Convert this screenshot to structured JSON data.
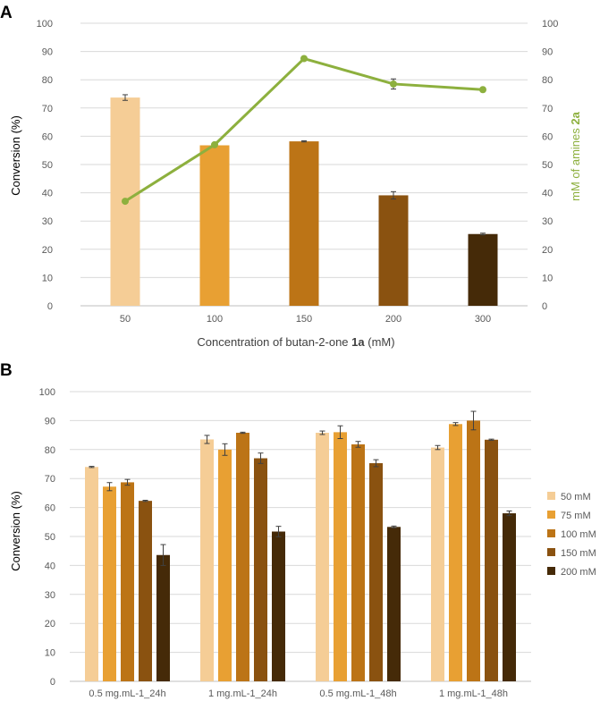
{
  "chart_data": [
    {
      "panel": "A",
      "type": "bar",
      "title": "",
      "xlabel_prefix": "Concentration of butan-2-one ",
      "xlabel_bold": "1a",
      "xlabel_suffix": " (mM)",
      "ylabel": "Conversion (%)",
      "y2label_prefix": "mM of amines ",
      "y2label_bold": "2a",
      "ylim": [
        0,
        100
      ],
      "y2lim": [
        0,
        100
      ],
      "yticks": [
        "0",
        "10",
        "20",
        "30",
        "40",
        "50",
        "60",
        "70",
        "80",
        "90",
        "100"
      ],
      "y2ticks": [
        "0",
        "10",
        "20",
        "30",
        "40",
        "50",
        "60",
        "70",
        "80",
        "90",
        "100"
      ],
      "categories": [
        "50",
        "100",
        "150",
        "200",
        "300"
      ],
      "bar_values": [
        73.7,
        56.8,
        58.2,
        39.1,
        25.4
      ],
      "bar_errors": [
        1.0,
        0.3,
        0.2,
        1.3,
        0.3
      ],
      "bar_colors": [
        "#F5CD96",
        "#E8A033",
        "#BC7416",
        "#8A5210",
        "#452A08"
      ],
      "line_series": {
        "name": "mM of amines 2a",
        "values": [
          37,
          57,
          87.5,
          78.5,
          76.5
        ],
        "errors": [
          0,
          0,
          0,
          1.8,
          0
        ],
        "color": "#8DB03E"
      }
    },
    {
      "panel": "B",
      "type": "bar",
      "title": "",
      "xlabel": "",
      "ylabel": "Conversion (%)",
      "ylim": [
        0,
        100
      ],
      "yticks": [
        "0",
        "10",
        "20",
        "30",
        "40",
        "50",
        "60",
        "70",
        "80",
        "90",
        "100"
      ],
      "categories": [
        "0.5 mg.mL-1_24h",
        "1 mg.mL-1_24h",
        "0.5 mg.mL-1_48h",
        "1 mg.mL-1_48h"
      ],
      "series": [
        {
          "name": "50 mM",
          "color": "#F5CD96",
          "values": [
            74.0,
            83.5,
            85.8,
            80.7
          ],
          "errors": [
            0.2,
            1.4,
            0.6,
            0.7
          ]
        },
        {
          "name": "75 mM",
          "color": "#E8A033",
          "values": [
            67.2,
            80.0,
            86.0,
            88.8
          ],
          "errors": [
            1.4,
            2.0,
            2.2,
            0.5
          ]
        },
        {
          "name": "100 mM",
          "color": "#BC7416",
          "values": [
            68.7,
            85.8,
            81.8,
            90.0
          ],
          "errors": [
            1.0,
            0.2,
            1.0,
            3.2
          ]
        },
        {
          "name": "150 mM",
          "color": "#8A5210",
          "values": [
            62.3,
            77.0,
            75.3,
            83.4
          ],
          "errors": [
            0.2,
            1.8,
            1.2,
            0.2
          ]
        },
        {
          "name": "200 mM",
          "color": "#452A08",
          "values": [
            43.6,
            51.7,
            53.3,
            58.0
          ],
          "errors": [
            3.6,
            1.8,
            0.3,
            0.8
          ]
        }
      ]
    }
  ]
}
